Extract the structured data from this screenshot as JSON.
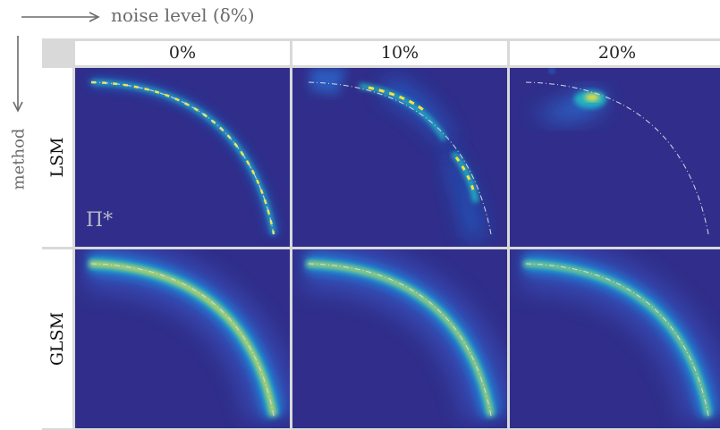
{
  "axes_annotations": {
    "horizontal_caption": "noise level (δ%)",
    "vertical_caption": "method"
  },
  "columns": [
    "0%",
    "10%",
    "20%"
  ],
  "rows": [
    "LSM",
    "GLSM"
  ],
  "panel_overlay_label": "Π*",
  "colors": {
    "background_blue": "#302e8a",
    "curve_dashdot": "#d8d8e8",
    "heat_high": "#f8e23b",
    "heat_mid": "#1fa7c7",
    "frame_gray": "#d9d9d9"
  }
}
